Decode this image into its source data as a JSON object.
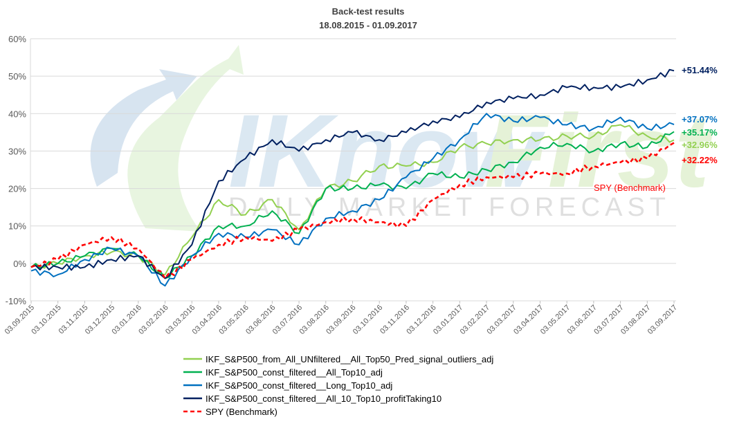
{
  "chart_data": {
    "type": "line",
    "title": "Back-test results",
    "subtitle": "18.08.2015 - 01.09.2017",
    "xlabel": "",
    "ylabel": "",
    "ylim": [
      -0.1,
      0.6
    ],
    "y_ticks": [
      "-10%",
      "0%",
      "10%",
      "20%",
      "30%",
      "40%",
      "50%",
      "60%"
    ],
    "x_ticks": [
      "03.09.2015",
      "03.10.2015",
      "03.11.2015",
      "03.12.2015",
      "03.01.2016",
      "03.02.2016",
      "03.03.2016",
      "03.04.2016",
      "03.05.2016",
      "03.06.2016",
      "03.07.2016",
      "03.08.2016",
      "03.09.2016",
      "03.10.2016",
      "03.11.2016",
      "03.12.2016",
      "03.01.2017",
      "03.02.2017",
      "03.03.2017",
      "03.04.2017",
      "03.05.2017",
      "03.06.2017",
      "03.07.2017",
      "03.08.2017",
      "03.09.2017"
    ],
    "grid": "horizontal",
    "legend_position": "bottom",
    "watermark": "I Know First — Daily Market Forecast",
    "x": [
      "03.09.2015",
      "03.10.2015",
      "03.11.2015",
      "03.12.2015",
      "03.01.2016",
      "03.02.2016",
      "03.03.2016",
      "03.04.2016",
      "03.05.2016",
      "03.06.2016",
      "03.07.2016",
      "03.08.2016",
      "03.09.2016",
      "03.10.2016",
      "03.11.2016",
      "03.12.2016",
      "03.01.2017",
      "03.02.2017",
      "03.03.2017",
      "03.04.2017",
      "03.05.2017",
      "03.06.2017",
      "03.07.2017",
      "03.08.2017",
      "03.09.2017"
    ],
    "series": [
      {
        "name": "IKF_S&P500_from_All_UNfiltered__All_Top50_Pred_signal_outliers_adj",
        "color": "#92d050",
        "dash": "solid",
        "values": [
          -0.01,
          0.0,
          0.02,
          0.03,
          0.02,
          -0.03,
          0.07,
          0.17,
          0.13,
          0.17,
          0.09,
          0.2,
          0.22,
          0.26,
          0.26,
          0.27,
          0.31,
          0.32,
          0.33,
          0.33,
          0.34,
          0.34,
          0.37,
          0.34,
          0.3296
        ],
        "end_label": "+32.96%"
      },
      {
        "name": "IKF_S&P500_const_filtered__All_Top10_adj",
        "color": "#00b050",
        "dash": "solid",
        "values": [
          -0.01,
          0.0,
          0.02,
          0.04,
          0.02,
          -0.04,
          0.02,
          0.1,
          0.1,
          0.14,
          0.08,
          0.2,
          0.2,
          0.21,
          0.2,
          0.24,
          0.23,
          0.25,
          0.27,
          0.31,
          0.32,
          0.3,
          0.32,
          0.31,
          0.3517
        ],
        "end_label": "+35.17%"
      },
      {
        "name": "IKF_S&P500_const_filtered__Long_Top10_adj",
        "color": "#0070c0",
        "dash": "solid",
        "values": [
          -0.02,
          -0.03,
          0.01,
          0.04,
          0.02,
          -0.06,
          0.02,
          0.08,
          0.07,
          0.09,
          0.05,
          0.12,
          0.14,
          0.17,
          0.23,
          0.28,
          0.33,
          0.4,
          0.38,
          0.39,
          0.37,
          0.36,
          0.39,
          0.36,
          0.3707
        ],
        "end_label": "+37.07%"
      },
      {
        "name": "IKF_S&P500_const_filtered__All_10_Top10_profitTaking10",
        "color": "#002060",
        "dash": "solid",
        "values": [
          -0.01,
          -0.01,
          -0.01,
          0.01,
          0.02,
          -0.04,
          0.05,
          0.22,
          0.28,
          0.33,
          0.3,
          0.33,
          0.35,
          0.33,
          0.35,
          0.38,
          0.39,
          0.43,
          0.44,
          0.45,
          0.47,
          0.47,
          0.47,
          0.49,
          0.5144
        ],
        "end_label": "+51.44%"
      },
      {
        "name": "SPY (Benchmark)",
        "color": "#ff0000",
        "dash": "dashed",
        "values": [
          -0.01,
          0.01,
          0.05,
          0.07,
          0.04,
          -0.04,
          0.01,
          0.05,
          0.07,
          0.06,
          0.09,
          0.11,
          0.12,
          0.11,
          0.1,
          0.17,
          0.21,
          0.23,
          0.23,
          0.24,
          0.24,
          0.26,
          0.27,
          0.28,
          0.3222
        ],
        "end_label": "+32.22%",
        "inline_label": "SPY (Benchmark)"
      }
    ]
  }
}
